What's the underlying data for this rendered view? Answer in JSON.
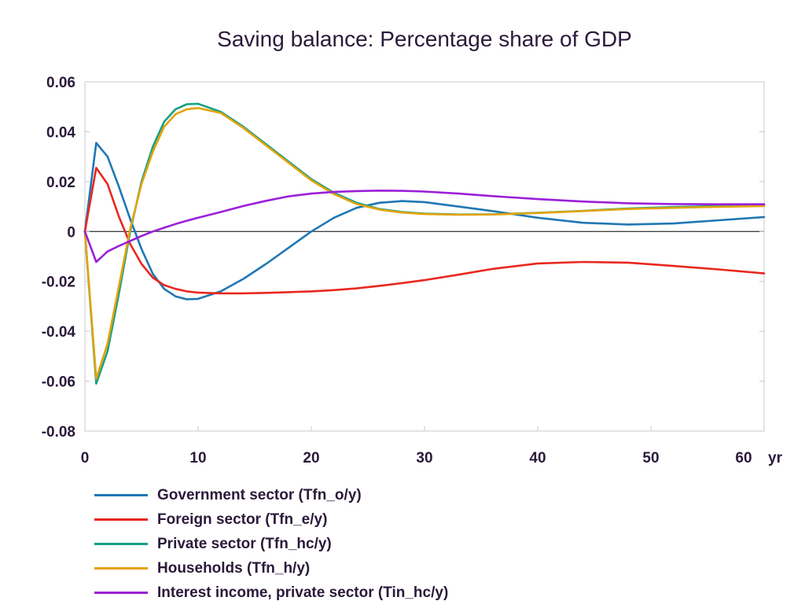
{
  "chart_data": {
    "type": "line",
    "title": "Saving balance: Percentage share of GDP",
    "xlabel": "",
    "ylabel": "",
    "x_unit_label": "yr",
    "xlim": [
      0,
      60
    ],
    "ylim": [
      -0.08,
      0.06
    ],
    "x_ticks": [
      0,
      10,
      20,
      30,
      40,
      50,
      60
    ],
    "x_tick_labels": [
      "0",
      "10",
      "20",
      "30",
      "40",
      "50",
      "60"
    ],
    "y_ticks": [
      -0.08,
      -0.06,
      -0.04,
      -0.02,
      0,
      0.02,
      0.04,
      0.06
    ],
    "y_tick_labels": [
      "-0.08",
      "-0.06",
      "-0.04",
      "-0.02",
      "0",
      "0.02",
      "0.04",
      "0.06"
    ],
    "grid": false,
    "zero_line": true,
    "legend_position": "bottom",
    "x": [
      0,
      1,
      2,
      3,
      4,
      5,
      6,
      7,
      8,
      9,
      10,
      12,
      14,
      16,
      18,
      20,
      22,
      24,
      26,
      28,
      30,
      33,
      36,
      40,
      44,
      48,
      52,
      56,
      60
    ],
    "series": [
      {
        "name": "Government sector (Tfn_o/y)",
        "color": "#1f77b4",
        "values": [
          0,
          0.0355,
          0.03,
          0.018,
          0.005,
          -0.007,
          -0.017,
          -0.023,
          -0.026,
          -0.0272,
          -0.027,
          -0.024,
          -0.019,
          -0.013,
          -0.0065,
          0,
          0.0055,
          0.0095,
          0.0115,
          0.0122,
          0.0118,
          0.01,
          0.0082,
          0.0055,
          0.0035,
          0.0028,
          0.0032,
          0.0045,
          0.0058
        ]
      },
      {
        "name": "Foreign sector (Tfn_e/y)",
        "color": "#e8281e",
        "values": [
          0,
          0.0255,
          0.019,
          0.006,
          -0.005,
          -0.013,
          -0.0185,
          -0.0215,
          -0.023,
          -0.024,
          -0.0245,
          -0.0248,
          -0.0248,
          -0.0246,
          -0.0243,
          -0.024,
          -0.0235,
          -0.0228,
          -0.0218,
          -0.0207,
          -0.0195,
          -0.0173,
          -0.015,
          -0.0128,
          -0.0122,
          -0.0125,
          -0.0138,
          -0.0152,
          -0.0168
        ]
      },
      {
        "name": "Private sector (Tfn_hc/y)",
        "color": "#17a085",
        "values": [
          0,
          -0.061,
          -0.048,
          -0.025,
          0,
          0.02,
          0.034,
          0.044,
          0.049,
          0.051,
          0.0512,
          0.048,
          0.042,
          0.035,
          0.028,
          0.021,
          0.0155,
          0.0115,
          0.009,
          0.0078,
          0.0072,
          0.0068,
          0.0069,
          0.0075,
          0.0083,
          0.0092,
          0.0098,
          0.0102,
          0.0105
        ]
      },
      {
        "name": "Households (Tfn_h/y)",
        "color": "#e3a30c",
        "values": [
          0,
          -0.059,
          -0.045,
          -0.022,
          0.001,
          0.019,
          0.032,
          0.042,
          0.047,
          0.049,
          0.0495,
          0.0475,
          0.0415,
          0.0345,
          0.0275,
          0.0205,
          0.015,
          0.011,
          0.0088,
          0.0076,
          0.007,
          0.0067,
          0.0068,
          0.0074,
          0.0082,
          0.009,
          0.0095,
          0.0099,
          0.0102
        ]
      },
      {
        "name": "Interest income, private sector (Tin_hc/y)",
        "color": "#9b1fd8",
        "values": [
          0,
          -0.0122,
          -0.008,
          -0.0058,
          -0.0038,
          -0.0018,
          0,
          0.0015,
          0.003,
          0.0043,
          0.0055,
          0.0078,
          0.0102,
          0.0123,
          0.0141,
          0.0152,
          0.0159,
          0.0162,
          0.0164,
          0.0163,
          0.016,
          0.0152,
          0.0142,
          0.013,
          0.012,
          0.0113,
          0.011,
          0.0109,
          0.0109
        ]
      }
    ]
  }
}
